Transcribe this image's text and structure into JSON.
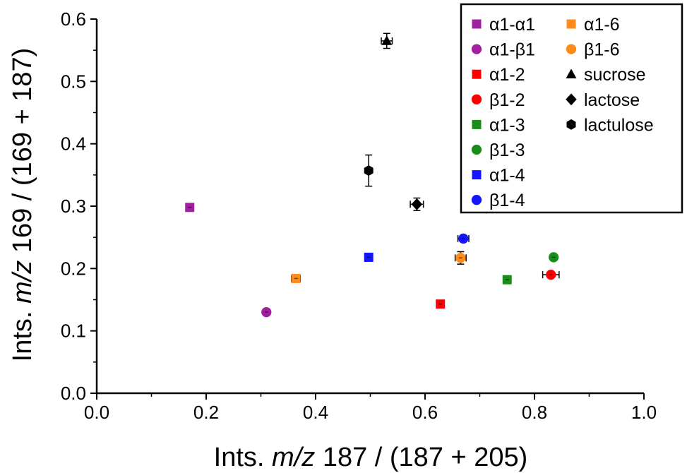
{
  "chart_data": {
    "type": "scatter",
    "title": "",
    "xlabel_parts": [
      "Ints. ",
      "m/z",
      " 187 / (187 + 205)"
    ],
    "ylabel_parts": [
      "Ints. ",
      "m/z",
      " 169 / (169 + 187)"
    ],
    "xlim": [
      0.0,
      1.0
    ],
    "ylim": [
      0.0,
      0.6
    ],
    "x_ticks": [
      "0.0",
      "0.2",
      "0.4",
      "0.6",
      "0.8",
      "1.0"
    ],
    "y_ticks": [
      "0.0",
      "0.1",
      "0.2",
      "0.3",
      "0.4",
      "0.5",
      "0.6"
    ],
    "grid": false,
    "legend_position": "top-right",
    "series": [
      {
        "name": "α1-α1",
        "marker": "square",
        "color": "#a020a0",
        "x": 0.17,
        "y": 0.298,
        "xerr": 0.0,
        "yerr": 0.0
      },
      {
        "name": "α1-β1",
        "marker": "circle",
        "color": "#a020a0",
        "x": 0.31,
        "y": 0.13,
        "xerr": 0.005,
        "yerr": 0.0
      },
      {
        "name": "α1-2",
        "marker": "square",
        "color": "#ff0000",
        "x": 0.628,
        "y": 0.143,
        "xerr": 0.005,
        "yerr": 0.0
      },
      {
        "name": "β1-2",
        "marker": "circle",
        "color": "#ff0000",
        "x": 0.83,
        "y": 0.19,
        "xerr": 0.015,
        "yerr": 0.0
      },
      {
        "name": "α1-3",
        "marker": "square",
        "color": "#1a8c1a",
        "x": 0.75,
        "y": 0.182,
        "xerr": 0.005,
        "yerr": 0.0
      },
      {
        "name": "β1-3",
        "marker": "circle",
        "color": "#1a8c1a",
        "x": 0.835,
        "y": 0.218,
        "xerr": 0.005,
        "yerr": 0.0
      },
      {
        "name": "α1-4",
        "marker": "square",
        "color": "#1414ff",
        "x": 0.497,
        "y": 0.218,
        "xerr": 0.0,
        "yerr": 0.0
      },
      {
        "name": "β1-4",
        "marker": "circle",
        "color": "#1414ff",
        "x": 0.67,
        "y": 0.248,
        "xerr": 0.01,
        "yerr": 0.0
      },
      {
        "name": "α1-6",
        "marker": "square",
        "color": "#ff8c1a",
        "x": 0.364,
        "y": 0.184,
        "xerr": 0.008,
        "yerr": 0.0
      },
      {
        "name": "β1-6",
        "marker": "circle",
        "color": "#ff8c1a",
        "x": 0.665,
        "y": 0.217,
        "xerr": 0.01,
        "yerr": 0.01
      },
      {
        "name": "sucrose",
        "marker": "triangle",
        "color": "#000000",
        "x": 0.53,
        "y": 0.565,
        "xerr": 0.01,
        "yerr": 0.012
      },
      {
        "name": "lactose",
        "marker": "diamond",
        "color": "#000000",
        "x": 0.585,
        "y": 0.303,
        "xerr": 0.012,
        "yerr": 0.01
      },
      {
        "name": "lactulose",
        "marker": "hexagon",
        "color": "#000000",
        "x": 0.497,
        "y": 0.357,
        "xerr": 0.0,
        "yerr": 0.025
      }
    ],
    "legend_columns": [
      [
        "α1-α1",
        "α1-β1",
        "α1-2",
        "β1-2",
        "α1-3",
        "β1-3",
        "α1-4",
        "β1-4"
      ],
      [
        "α1-6",
        "β1-6",
        "sucrose",
        "lactose",
        "lactulose"
      ]
    ]
  }
}
